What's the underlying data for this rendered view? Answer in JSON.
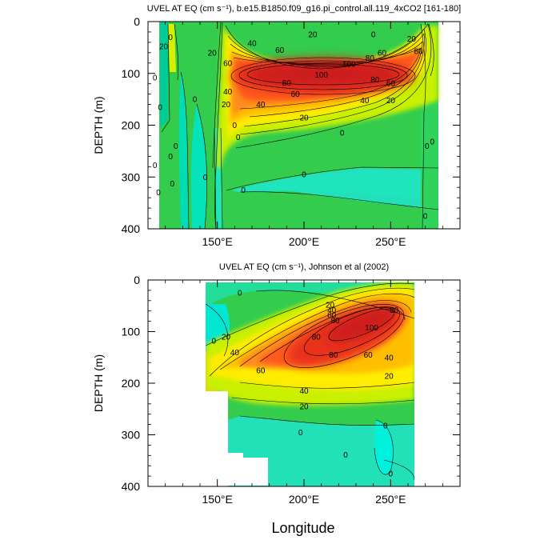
{
  "chart_data": [
    {
      "type": "heatmap",
      "subtype": "filled-contour",
      "title": "UVEL AT EQ (cm s⁻¹), b.e15.B1850.f09_g16.pi_control.all.119_4xCO2 [161-180]",
      "ylabel": "DEPTH (m)",
      "xlabel": "",
      "xlim": [
        110,
        290
      ],
      "ylim": [
        400,
        0
      ],
      "y_inverted": true,
      "x_ticks": [
        150,
        200,
        250
      ],
      "x_tick_labels": [
        "150°E",
        "200°E",
        "250°E"
      ],
      "y_ticks": [
        0,
        100,
        200,
        300,
        400
      ],
      "y_tick_labels": [
        "0",
        "100",
        "200",
        "300",
        "400"
      ],
      "data_extent_lon": [
        115,
        278
      ],
      "contour_interval": 10,
      "core": {
        "lon": 205,
        "depth": 95,
        "max_value": 110
      },
      "contour_labels": [
        {
          "text": "0",
          "lon": 123,
          "depth": 30
        },
        {
          "text": "20",
          "lon": 119,
          "depth": 48
        },
        {
          "text": "0",
          "lon": 114,
          "depth": 108
        },
        {
          "text": "0",
          "lon": 117,
          "depth": 165
        },
        {
          "text": "20",
          "lon": 147,
          "depth": 60
        },
        {
          "text": "0",
          "lon": 137,
          "depth": 150
        },
        {
          "text": "0",
          "lon": 114,
          "depth": 277
        },
        {
          "text": "0",
          "lon": 116,
          "depth": 330
        },
        {
          "text": "0",
          "lon": 126,
          "depth": 240
        },
        {
          "text": "0",
          "lon": 123,
          "depth": 260
        },
        {
          "text": "0",
          "lon": 124,
          "depth": 313
        },
        {
          "text": "0",
          "lon": 143,
          "depth": 300
        },
        {
          "text": "40",
          "lon": 170,
          "depth": 42
        },
        {
          "text": "60",
          "lon": 156,
          "depth": 80
        },
        {
          "text": "20",
          "lon": 205,
          "depth": 25
        },
        {
          "text": "0",
          "lon": 240,
          "depth": 25
        },
        {
          "text": "20",
          "lon": 262,
          "depth": 33
        },
        {
          "text": "60",
          "lon": 186,
          "depth": 55
        },
        {
          "text": "60",
          "lon": 245,
          "depth": 60
        },
        {
          "text": "80",
          "lon": 238,
          "depth": 70
        },
        {
          "text": "100",
          "lon": 226,
          "depth": 82
        },
        {
          "text": "100",
          "lon": 210,
          "depth": 103
        },
        {
          "text": "80",
          "lon": 190,
          "depth": 118
        },
        {
          "text": "60",
          "lon": 195,
          "depth": 140
        },
        {
          "text": "40",
          "lon": 175,
          "depth": 160
        },
        {
          "text": "80",
          "lon": 241,
          "depth": 112
        },
        {
          "text": "60",
          "lon": 250,
          "depth": 119
        },
        {
          "text": "40",
          "lon": 235,
          "depth": 152
        },
        {
          "text": "20",
          "lon": 250,
          "depth": 152
        },
        {
          "text": "20",
          "lon": 200,
          "depth": 185
        },
        {
          "text": "0",
          "lon": 222,
          "depth": 215
        },
        {
          "text": "0",
          "lon": 200,
          "depth": 295
        },
        {
          "text": "80",
          "lon": 266,
          "depth": 57
        },
        {
          "text": "40",
          "lon": 156,
          "depth": 135
        },
        {
          "text": "20",
          "lon": 155,
          "depth": 160
        },
        {
          "text": "0",
          "lon": 160,
          "depth": 200
        },
        {
          "text": "0",
          "lon": 162,
          "depth": 223
        },
        {
          "text": "0",
          "lon": 165,
          "depth": 325
        },
        {
          "text": "0",
          "lon": 271,
          "depth": 240
        },
        {
          "text": "0",
          "lon": 274,
          "depth": 232
        },
        {
          "text": "0",
          "lon": 270,
          "depth": 375
        }
      ]
    },
    {
      "type": "heatmap",
      "subtype": "filled-contour",
      "title": "UVEL AT EQ (cm s⁻¹), Johnson et al (2002)",
      "ylabel": "DEPTH (m)",
      "xlabel": "Longitude",
      "xlim": [
        110,
        290
      ],
      "ylim": [
        400,
        0
      ],
      "y_inverted": true,
      "x_ticks": [
        150,
        200,
        250
      ],
      "x_tick_labels": [
        "150°E",
        "200°E",
        "250°E"
      ],
      "y_ticks": [
        0,
        100,
        200,
        300,
        400
      ],
      "y_tick_labels": [
        "0",
        "100",
        "200",
        "300",
        "400"
      ],
      "data_extent_lon": [
        143,
        265
      ],
      "contour_interval": 10,
      "core": {
        "lon": 233,
        "depth": 98,
        "max_value": 105
      },
      "contour_labels": [
        {
          "text": "0",
          "lon": 163,
          "depth": 25
        },
        {
          "text": "0",
          "lon": 148,
          "depth": 118
        },
        {
          "text": "20",
          "lon": 155,
          "depth": 110
        },
        {
          "text": "40",
          "lon": 160,
          "depth": 140
        },
        {
          "text": "60",
          "lon": 175,
          "depth": 175
        },
        {
          "text": "20",
          "lon": 215,
          "depth": 48
        },
        {
          "text": "40",
          "lon": 216,
          "depth": 58
        },
        {
          "text": "60",
          "lon": 216,
          "depth": 68
        },
        {
          "text": "80",
          "lon": 218,
          "depth": 78
        },
        {
          "text": "80",
          "lon": 207,
          "depth": 110
        },
        {
          "text": "80",
          "lon": 252,
          "depth": 58
        },
        {
          "text": "100",
          "lon": 239,
          "depth": 92
        },
        {
          "text": "80",
          "lon": 217,
          "depth": 145
        },
        {
          "text": "60",
          "lon": 237,
          "depth": 145
        },
        {
          "text": "40",
          "lon": 249,
          "depth": 150
        },
        {
          "text": "20",
          "lon": 249,
          "depth": 186
        },
        {
          "text": "40",
          "lon": 200,
          "depth": 215
        },
        {
          "text": "20",
          "lon": 200,
          "depth": 245
        },
        {
          "text": "0",
          "lon": 198,
          "depth": 295
        },
        {
          "text": "0",
          "lon": 224,
          "depth": 339
        },
        {
          "text": "0",
          "lon": 247,
          "depth": 282
        },
        {
          "text": "0",
          "lon": 250,
          "depth": 375
        }
      ]
    }
  ]
}
